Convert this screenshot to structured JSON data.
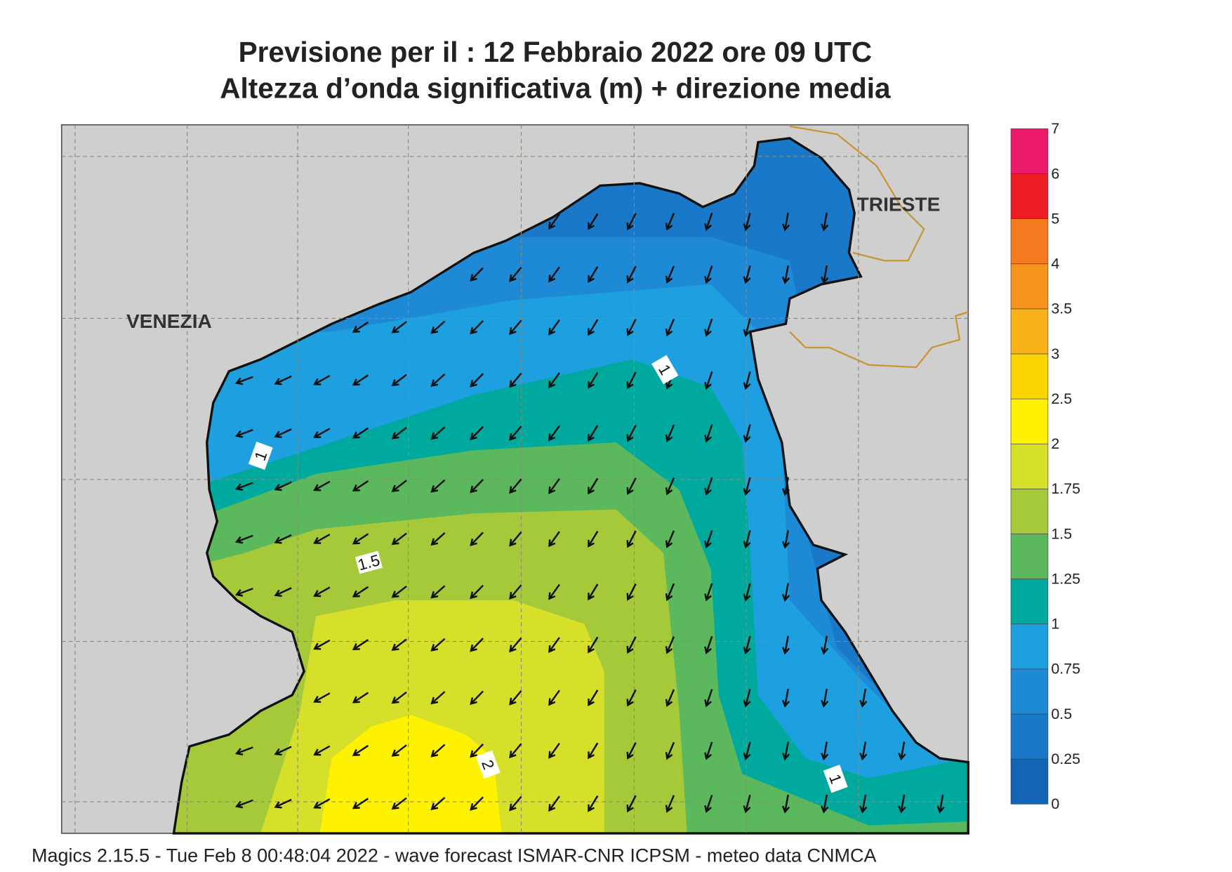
{
  "header": {
    "title_line1": "Previsione per il  :  12  Febbraio 2022   ore 09 UTC",
    "title_line2": "Altezza d’onda significativa (m) + direzione media"
  },
  "map": {
    "places": [
      "VENEZIA",
      "TRIESTE"
    ],
    "contour_labels": [
      "1",
      "1",
      "1.5",
      "2",
      "1"
    ]
  },
  "legend": {
    "ticks": [
      "0",
      "0.25",
      "0.5",
      "0.75",
      "1",
      "1.25",
      "1.5",
      "1.75",
      "2",
      "2.5",
      "3",
      "3.5",
      "4",
      "5",
      "6",
      "7"
    ],
    "colors": [
      "#1364b4",
      "#1a78c8",
      "#1e8ad6",
      "#1ea0e0",
      "#00a99d",
      "#5cb85c",
      "#a6c93a",
      "#d6e02a",
      "#fff200",
      "#fcd400",
      "#f9b21a",
      "#f7941d",
      "#f47b20",
      "#ed1c24",
      "#ec1a6a"
    ]
  },
  "footer": "Magics 2.15.5 - Tue Feb  8 00:48:04 2022 - wave forecast  ISMAR-CNR  ICPSM - meteo data   CNMCA"
}
